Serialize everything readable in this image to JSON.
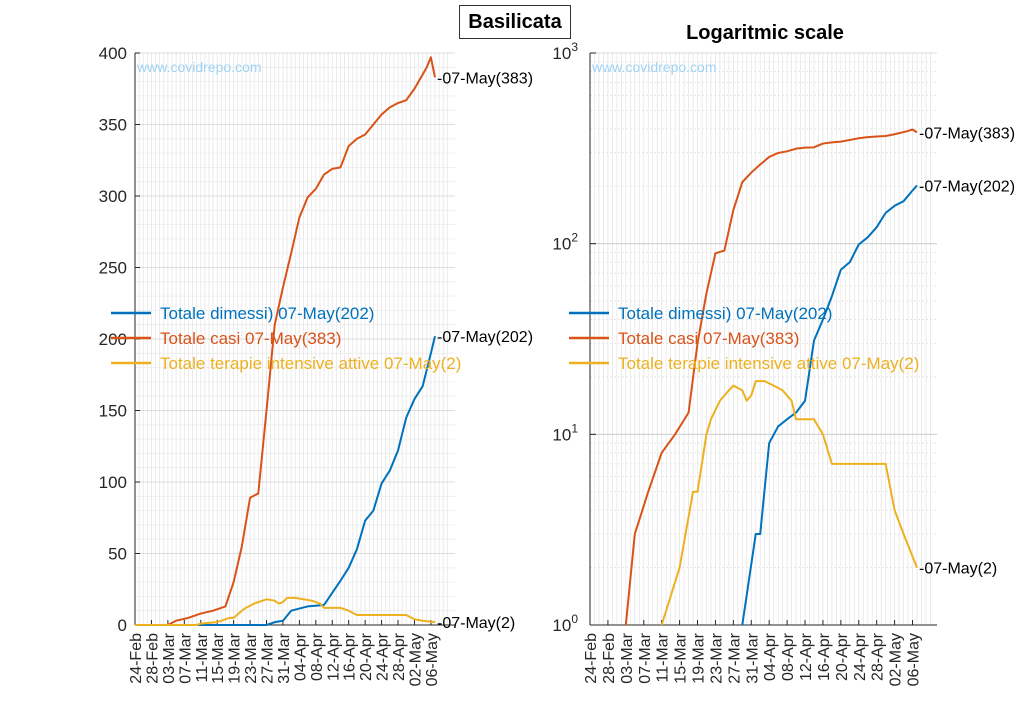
{
  "title": "Basilicata",
  "watermark": "www.covidrepo.com",
  "colors": {
    "dimessi": "#0072BD",
    "casi": "#D95319",
    "terapie": "#EDB120",
    "grid": "#d9d9d9",
    "axis": "#262626"
  },
  "chart_data": [
    {
      "type": "line",
      "title": "Basilicata",
      "x_tick_labels": [
        "24-Feb",
        "28-Feb",
        "03-Mar",
        "07-Mar",
        "11-Mar",
        "15-Mar",
        "19-Mar",
        "23-Mar",
        "27-Mar",
        "31-Mar",
        "04-Apr",
        "08-Apr",
        "12-Apr",
        "16-Apr",
        "20-Apr",
        "24-Apr",
        "28-Apr",
        "02-May",
        "06-May"
      ],
      "x_start": "24-Feb",
      "x_end": "07-May",
      "ylim": [
        0,
        400
      ],
      "y_ticks": [
        "0",
        "50",
        "100",
        "150",
        "200",
        "250",
        "300",
        "350",
        "400"
      ],
      "grid": true,
      "legend_location": "middle-left",
      "series": [
        {
          "name": "Totale dimessi) 07-May(202)",
          "color": "#0072BD",
          "end_label": "-07-May(202)",
          "x": [
            "24-Feb",
            "27-Mar",
            "29-Mar",
            "31-Mar",
            "02-Apr",
            "06-Apr",
            "10-Apr",
            "14-Apr",
            "16-Apr",
            "18-Apr",
            "20-Apr",
            "22-Apr",
            "24-Apr",
            "26-Apr",
            "28-Apr",
            "30-Apr",
            "02-May",
            "04-May",
            "06-May",
            "07-May"
          ],
          "values": [
            0,
            0,
            2,
            3,
            10,
            13,
            14,
            31,
            40,
            53,
            73,
            80,
            99,
            108,
            122,
            145,
            158,
            167,
            190,
            202
          ]
        },
        {
          "name": "Totale casi 07-May(383)",
          "color": "#D95319",
          "end_label": "-07-May(383)",
          "x": [
            "24-Feb",
            "03-Mar",
            "05-Mar",
            "08-Mar",
            "11-Mar",
            "14-Mar",
            "17-Mar",
            "19-Mar",
            "21-Mar",
            "23-Mar",
            "25-Mar",
            "27-Mar",
            "29-Mar",
            "31-Mar",
            "02-Apr",
            "04-Apr",
            "06-Apr",
            "08-Apr",
            "10-Apr",
            "12-Apr",
            "14-Apr",
            "16-Apr",
            "18-Apr",
            "20-Apr",
            "22-Apr",
            "24-Apr",
            "26-Apr",
            "28-Apr",
            "30-Apr",
            "02-May",
            "04-May",
            "05-May",
            "06-May",
            "07-May"
          ],
          "values": [
            0,
            0,
            3,
            5,
            8,
            10,
            13,
            30,
            55,
            89,
            92,
            150,
            210,
            236,
            260,
            285,
            299,
            305,
            315,
            319,
            320,
            335,
            340,
            343,
            350,
            357,
            362,
            365,
            367,
            375,
            385,
            390,
            397,
            383
          ]
        },
        {
          "name": "Totale terapie intensive attive 07-May(2)",
          "color": "#EDB120",
          "end_label": "-07-May(2)",
          "x": [
            "24-Feb",
            "10-Mar",
            "11-Mar",
            "15-Mar",
            "18-Mar",
            "19-Mar",
            "21-Mar",
            "22-Mar",
            "24-Mar",
            "26-Mar",
            "27-Mar",
            "29-Mar",
            "30-Mar",
            "31-Mar",
            "01-Apr",
            "03-Apr",
            "05-Apr",
            "07-Apr",
            "09-Apr",
            "10-Apr",
            "14-Apr",
            "16-Apr",
            "18-Apr",
            "30-Apr",
            "02-May",
            "04-May",
            "07-May"
          ],
          "values": [
            0,
            0,
            1,
            2,
            5,
            5,
            10,
            12,
            15,
            17,
            18,
            17,
            15,
            16,
            19,
            19,
            18,
            17,
            15,
            12,
            12,
            10,
            7,
            7,
            4,
            3,
            2
          ]
        }
      ]
    },
    {
      "type": "line",
      "title": "Logaritmic scale",
      "y_scale": "log",
      "x_tick_labels": [
        "24-Feb",
        "28-Feb",
        "03-Mar",
        "07-Mar",
        "11-Mar",
        "15-Mar",
        "19-Mar",
        "23-Mar",
        "27-Mar",
        "31-Mar",
        "04-Apr",
        "08-Apr",
        "12-Apr",
        "16-Apr",
        "20-Apr",
        "24-Apr",
        "28-Apr",
        "02-May",
        "06-May"
      ],
      "x_start": "24-Feb",
      "x_end": "07-May",
      "ylim": [
        1,
        1000
      ],
      "y_ticks": [
        {
          "base": "10",
          "exp": "0"
        },
        {
          "base": "10",
          "exp": "1"
        },
        {
          "base": "10",
          "exp": "2"
        },
        {
          "base": "10",
          "exp": "3"
        }
      ],
      "grid": true,
      "legend_location": "middle-left",
      "series": [
        {
          "name": "Totale dimessi) 07-May(202)",
          "color": "#0072BD",
          "end_label": "-07-May(202)",
          "x": [
            "29-Mar",
            "01-Apr",
            "02-Apr",
            "04-Apr",
            "06-Apr",
            "08-Apr",
            "10-Apr",
            "12-Apr",
            "14-Apr",
            "16-Apr",
            "18-Apr",
            "20-Apr",
            "22-Apr",
            "24-Apr",
            "26-Apr",
            "28-Apr",
            "30-Apr",
            "02-May",
            "04-May",
            "06-May",
            "07-May"
          ],
          "values": [
            1,
            3,
            3,
            9,
            11,
            12,
            13,
            15,
            31,
            40,
            53,
            73,
            80,
            99,
            108,
            122,
            145,
            158,
            167,
            190,
            202
          ]
        },
        {
          "name": "Totale casi 07-May(383)",
          "color": "#D95319",
          "end_label": "-07-May(383)",
          "x": [
            "03-Mar",
            "05-Mar",
            "08-Mar",
            "11-Mar",
            "14-Mar",
            "17-Mar",
            "19-Mar",
            "21-Mar",
            "23-Mar",
            "25-Mar",
            "27-Mar",
            "29-Mar",
            "31-Mar",
            "02-Apr",
            "04-Apr",
            "06-Apr",
            "08-Apr",
            "10-Apr",
            "12-Apr",
            "14-Apr",
            "16-Apr",
            "18-Apr",
            "20-Apr",
            "22-Apr",
            "24-Apr",
            "26-Apr",
            "28-Apr",
            "30-Apr",
            "02-May",
            "04-May",
            "05-May",
            "06-May",
            "07-May"
          ],
          "values": [
            1,
            3,
            5,
            8,
            10,
            13,
            30,
            55,
            89,
            92,
            150,
            210,
            236,
            260,
            285,
            299,
            305,
            315,
            319,
            320,
            335,
            340,
            343,
            350,
            357,
            362,
            365,
            367,
            375,
            385,
            390,
            397,
            383
          ]
        },
        {
          "name": "Totale terapie intensive attive 07-May(2)",
          "color": "#EDB120",
          "end_label": "-07-May(2)",
          "x": [
            "11-Mar",
            "15-Mar",
            "18-Mar",
            "19-Mar",
            "21-Mar",
            "22-Mar",
            "24-Mar",
            "26-Mar",
            "27-Mar",
            "29-Mar",
            "30-Mar",
            "31-Mar",
            "01-Apr",
            "03-Apr",
            "05-Apr",
            "07-Apr",
            "09-Apr",
            "10-Apr",
            "14-Apr",
            "16-Apr",
            "18-Apr",
            "30-Apr",
            "02-May",
            "04-May",
            "07-May"
          ],
          "values": [
            1,
            2,
            5,
            5,
            10,
            12,
            15,
            17,
            18,
            17,
            15,
            16,
            19,
            19,
            18,
            17,
            15,
            12,
            12,
            10,
            7,
            7,
            4,
            3,
            2
          ]
        }
      ]
    }
  ]
}
